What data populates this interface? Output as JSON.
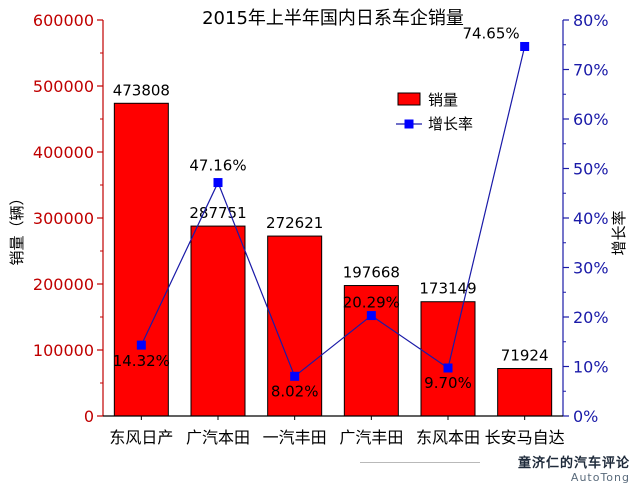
{
  "chart_data": {
    "type": "bar",
    "title": "2015年上半年国内日系车企销量",
    "categories": [
      "东风日产",
      "广汽本田",
      "一汽丰田",
      "广汽丰田",
      "东风本田",
      "长安马自达"
    ],
    "series": [
      {
        "name": "销量",
        "type": "bar",
        "axis": "left",
        "values": [
          473808,
          287751,
          272621,
          197668,
          173149,
          71924
        ],
        "labels": [
          "473808",
          "287751",
          "272621",
          "197668",
          "173149",
          "71924"
        ]
      },
      {
        "name": "增长率",
        "type": "line",
        "axis": "right",
        "values": [
          14.32,
          47.16,
          8.02,
          20.29,
          9.7,
          74.65
        ],
        "labels": [
          "14.32%",
          "47.16%",
          "8.02%",
          "20.29%",
          "9.70%",
          "74.65%"
        ]
      }
    ],
    "ylabel": "销量（辆）",
    "y2label": "增长率",
    "ylim": [
      0,
      600000
    ],
    "y2lim": [
      0,
      80
    ],
    "yticks": [
      "0",
      "100000",
      "200000",
      "300000",
      "400000",
      "500000",
      "600000"
    ],
    "y2ticks": [
      "0%",
      "10%",
      "20%",
      "30%",
      "40%",
      "50%",
      "60%",
      "70%",
      "80%"
    ],
    "legend_position": "top-right",
    "colors": {
      "bar": "#ff0000",
      "line": "#1a1aa8",
      "marker": "#0000ff",
      "left_axis": "#c00000",
      "right_axis": "#1a1aa8"
    }
  },
  "watermark": {
    "main": "童济仁的汽车评论",
    "sub": "AutoTong"
  }
}
